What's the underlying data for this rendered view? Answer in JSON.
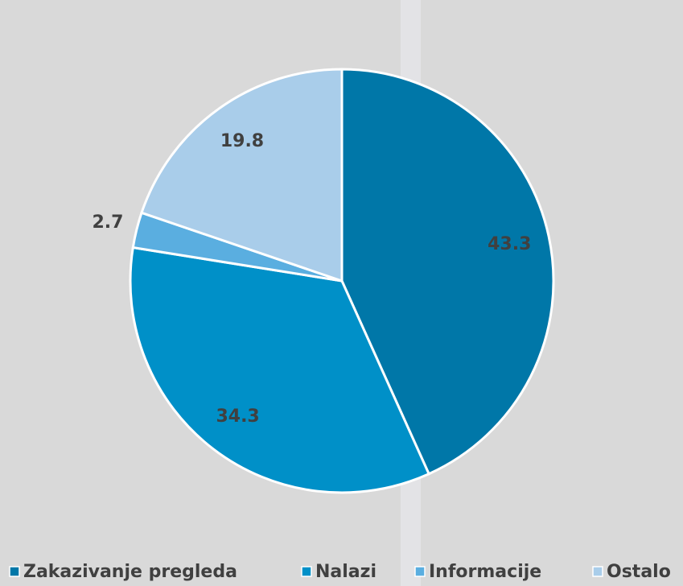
{
  "chart_data": {
    "type": "pie",
    "categories": [
      "Zakazivanje pregleda",
      "Nalazi",
      "Informacije",
      "Ostalo"
    ],
    "values": [
      43.3,
      34.3,
      2.7,
      19.8
    ],
    "colors": [
      "#0077a8",
      "#0090c8",
      "#5aaee0",
      "#a9cdea"
    ],
    "legend": "bottom"
  }
}
